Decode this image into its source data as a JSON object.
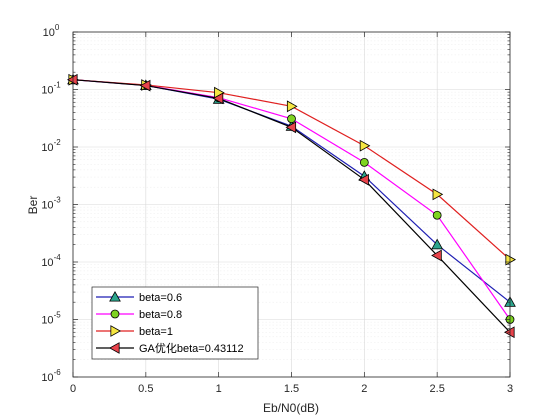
{
  "chart_data": {
    "type": "line",
    "xlabel": "Eb/N0(dB)",
    "ylabel": "Ber",
    "xlim": [
      0,
      3
    ],
    "ylim": [
      1e-06,
      1
    ],
    "yscale": "log",
    "grid": true,
    "legend_position": "bottom-left",
    "x": [
      0,
      0.5,
      1,
      1.5,
      2,
      2.5,
      3
    ],
    "x_ticks": [
      "0",
      "0.5",
      "1",
      "1.5",
      "2",
      "2.5",
      "3"
    ],
    "y_ticks": [
      {
        "base": "10",
        "exp": "0"
      },
      {
        "base": "10",
        "exp": "-1"
      },
      {
        "base": "10",
        "exp": "-2"
      },
      {
        "base": "10",
        "exp": "-3"
      },
      {
        "base": "10",
        "exp": "-4"
      },
      {
        "base": "10",
        "exp": "-5"
      },
      {
        "base": "10",
        "exp": "-6"
      }
    ],
    "series": [
      {
        "name": "beta=0.6",
        "color": "#1f1fb3",
        "marker": "triangle-up",
        "marker_fill": "#2ca58d",
        "values": [
          0.148,
          0.118,
          0.068,
          0.023,
          0.0031,
          0.0002,
          2e-05
        ]
      },
      {
        "name": "beta=0.8",
        "color": "#ff00ff",
        "marker": "circle",
        "marker_fill": "#7ed321",
        "values": [
          0.148,
          0.118,
          0.072,
          0.031,
          0.0054,
          0.00065,
          1e-05
        ]
      },
      {
        "name": "beta=1",
        "color": "#e02020",
        "marker": "triangle-right",
        "marker_fill": "#f5e642",
        "values": [
          0.148,
          0.12,
          0.088,
          0.051,
          0.0105,
          0.0015,
          0.00011
        ]
      },
      {
        "name": "GA优化beta=0.43112",
        "color": "#000000",
        "marker": "triangle-left",
        "marker_fill": "#e8434b",
        "values": [
          0.148,
          0.117,
          0.07,
          0.022,
          0.0027,
          0.00013,
          6e-06
        ]
      }
    ]
  }
}
